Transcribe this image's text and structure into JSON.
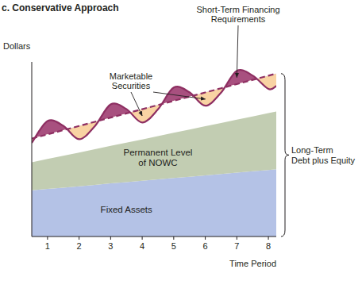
{
  "chart_data": {
    "type": "area",
    "title": "c. Conservative Approach",
    "xlabel": "Time Period",
    "ylabel": "Dollars",
    "x": [
      0.5,
      1.0,
      1.5,
      2.0,
      2.5,
      3.0,
      3.5,
      4.0,
      4.5,
      5.0,
      5.5,
      6.0,
      6.5,
      7.0,
      7.5,
      8.0,
      8.25
    ],
    "xlim": [
      0.5,
      8.25
    ],
    "xticks": [
      1,
      2,
      3,
      4,
      5,
      6,
      7,
      8
    ],
    "ylim": [
      0,
      100
    ],
    "tick_labels": "x",
    "grid": false,
    "stacked": false,
    "series": [
      {
        "name": "Fixed Assets",
        "type": "area",
        "color": "#b4c2e6",
        "values": [
          26.5,
          27.3,
          28.0,
          28.8,
          29.6,
          30.4,
          31.1,
          31.9,
          32.7,
          33.5,
          34.2,
          35.0,
          35.8,
          36.6,
          37.4,
          38.1,
          38.5
        ]
      },
      {
        "name": "Permanent Level\nof NOWC",
        "type": "area",
        "color": "#c2cdb2",
        "values": [
          42.5,
          44.4,
          46.2,
          48.1,
          50.0,
          51.9,
          53.8,
          55.6,
          57.5,
          59.4,
          61.3,
          63.2,
          65.0,
          66.9,
          68.8,
          70.7,
          71.6
        ]
      },
      {
        "name": "Long-Term\nDebt plus Equity",
        "type": "line",
        "color": "#8e2f62",
        "line_style": "dashed",
        "values": [
          56.1,
          58.5,
          60.9,
          63.3,
          65.7,
          68.1,
          70.5,
          72.9,
          75.3,
          77.7,
          80.1,
          82.5,
          84.9,
          87.3,
          89.7,
          92.1,
          93.3
        ]
      },
      {
        "type": "line",
        "color": "#8e2f62",
        "line_style": "solid",
        "values": [
          53.6,
          66.1,
          63.4,
          55.7,
          63.2,
          75.7,
          73.0,
          65.3,
          72.8,
          85.3,
          82.6,
          74.9,
          82.4,
          94.9,
          92.2,
          84.5,
          86.2
        ]
      }
    ],
    "annotations": [
      {
        "text": "Marketable\nSecurities",
        "color": "#f9d3a3",
        "x": [
          4.0,
          6.0
        ]
      },
      {
        "text": "Short-Term Financing\nRequirements",
        "color": "#a8507f",
        "x": [
          7.0
        ]
      }
    ]
  }
}
